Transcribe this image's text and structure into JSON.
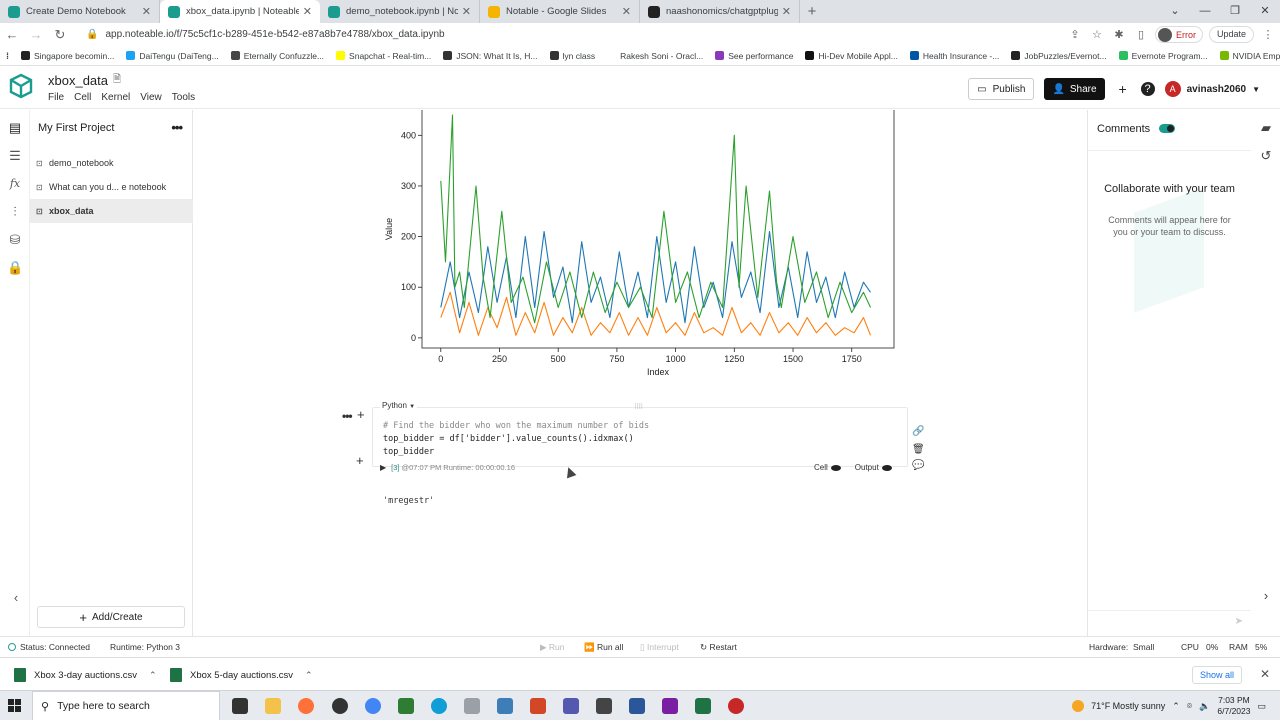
{
  "browser": {
    "tabs": [
      {
        "title": "Create Demo Notebook",
        "color": "#1a9d8f",
        "active": false
      },
      {
        "title": "xbox_data.ipynb | Noteable",
        "color": "#1a9d8f",
        "active": true
      },
      {
        "title": "demo_notebook.ipynb | Noteab...",
        "color": "#1a9d8f",
        "active": false
      },
      {
        "title": "Notable - Google Slides",
        "color": "#f4b400",
        "active": false
      },
      {
        "title": "naashonomics/chatgptplugins",
        "color": "#222222",
        "active": false
      }
    ],
    "url": "app.noteable.io/f/75c5cf1c-b289-451e-b542-e87a8b7e4788/xbox_data.ipynb",
    "error_label": "Error",
    "update_label": "Update",
    "bookmarks": [
      {
        "label": "Singapore becomin...",
        "color": "#222222"
      },
      {
        "label": "DaiTengu (DaiTeng...",
        "color": "#1da1f2"
      },
      {
        "label": "Eternally Confuzzle...",
        "color": "#464646"
      },
      {
        "label": "Snapchat - Real-tim...",
        "color": "#fffc00"
      },
      {
        "label": "JSON: What It Is, H...",
        "color": "#333333"
      },
      {
        "label": "lyn class",
        "color": "#333333"
      },
      {
        "label": "Rakesh Soni - Oracl...",
        "color": "#ffffff"
      },
      {
        "label": "See performance",
        "color": "#8a3ab9"
      },
      {
        "label": "Hi-Dev Mobile Appl...",
        "color": "#111111"
      },
      {
        "label": "Health Insurance -...",
        "color": "#0055a4"
      },
      {
        "label": "JobPuzzles/Evernot...",
        "color": "#222222"
      },
      {
        "label": "Evernote Program...",
        "color": "#2dbe60"
      },
      {
        "label": "NVIDIA Employment",
        "color": "#76b900"
      }
    ]
  },
  "app": {
    "notebook_title": "xbox_data",
    "menu": [
      "File",
      "Cell",
      "Kernel",
      "View",
      "Tools"
    ],
    "publish_label": "Publish",
    "share_label": "Share",
    "user_initial": "A",
    "username": "avinash2060"
  },
  "sidebar": {
    "project": "My First Project",
    "files": [
      {
        "label": "demo_notebook",
        "active": false
      },
      {
        "label": "What can you d... e notebook",
        "active": false
      },
      {
        "label": "xbox_data",
        "active": true
      }
    ],
    "add_create": "Add/Create"
  },
  "cell": {
    "language": "Python",
    "code_comment": "# Find the bidder who won the maximum number of bids",
    "code_line2": "top_bidder = df['bidder'].value_counts().idxmax()",
    "code_line3": "top_bidder",
    "exec_count": "[3]",
    "exec_info": "@07:07 PM Runtime: 00:00:00.16",
    "cell_label": "Cell",
    "output_label": "Output",
    "output": "'mregestr'"
  },
  "comments": {
    "title": "Comments",
    "heading": "Collaborate with your team",
    "body": "Comments will appear here for you or your team to discuss."
  },
  "status": {
    "status": "Status: Connected",
    "runtime": "Runtime:  Python 3",
    "run": "Run",
    "run_all": "Run all",
    "interrupt": "Interrupt",
    "restart": "Restart",
    "hardware": "Hardware:",
    "hardware_val": "Small",
    "cpu": "CPU",
    "cpu_val": "0%",
    "ram": "RAM",
    "ram_val": "5%"
  },
  "downloads": {
    "items": [
      "Xbox 3-day auctions.csv",
      "Xbox 5-day auctions.csv"
    ],
    "show_all": "Show all"
  },
  "taskbar": {
    "search_placeholder": "Type here to search",
    "weather": "71°F  Mostly sunny",
    "time": "7:03 PM",
    "date": "6/7/2023"
  },
  "chart_data": {
    "type": "line",
    "xlabel": "Index",
    "ylabel": "Value",
    "xticks": [
      0,
      250,
      500,
      750,
      1000,
      1250,
      1500,
      1750
    ],
    "yticks": [
      0,
      100,
      200,
      300,
      400
    ],
    "xlim": [
      -80,
      1930
    ],
    "ylim": [
      -20,
      450
    ],
    "series": [
      {
        "color": "#1f77b4",
        "x": [
          0,
          40,
          80,
          120,
          160,
          200,
          240,
          280,
          320,
          360,
          400,
          440,
          480,
          520,
          560,
          600,
          640,
          680,
          720,
          760,
          800,
          840,
          880,
          920,
          960,
          1000,
          1040,
          1080,
          1120,
          1160,
          1200,
          1240,
          1280,
          1320,
          1360,
          1400,
          1440,
          1480,
          1520,
          1560,
          1600,
          1640,
          1680,
          1720,
          1760,
          1800,
          1830
        ],
        "values": [
          60,
          150,
          40,
          130,
          50,
          180,
          70,
          160,
          40,
          200,
          60,
          210,
          80,
          140,
          30,
          190,
          70,
          120,
          40,
          170,
          60,
          130,
          40,
          200,
          70,
          150,
          30,
          180,
          60,
          110,
          40,
          190,
          80,
          130,
          50,
          210,
          60,
          140,
          40,
          170,
          70,
          120,
          40,
          130,
          60,
          110,
          90
        ]
      },
      {
        "color": "#ff7f0e",
        "x": [
          0,
          40,
          80,
          120,
          160,
          200,
          240,
          280,
          320,
          360,
          400,
          440,
          480,
          520,
          560,
          600,
          640,
          680,
          720,
          760,
          800,
          840,
          880,
          920,
          960,
          1000,
          1040,
          1080,
          1120,
          1160,
          1200,
          1240,
          1280,
          1320,
          1360,
          1400,
          1440,
          1480,
          1520,
          1560,
          1600,
          1640,
          1680,
          1720,
          1760,
          1800,
          1830
        ],
        "values": [
          40,
          90,
          10,
          70,
          5,
          60,
          20,
          80,
          5,
          50,
          10,
          70,
          5,
          40,
          10,
          60,
          5,
          30,
          10,
          50,
          5,
          40,
          5,
          60,
          10,
          30,
          5,
          50,
          10,
          20,
          5,
          60,
          10,
          30,
          5,
          50,
          10,
          30,
          5,
          40,
          10,
          30,
          5,
          20,
          10,
          40,
          5
        ]
      },
      {
        "color": "#2ca02c",
        "x": [
          0,
          20,
          50,
          60,
          80,
          100,
          150,
          180,
          210,
          260,
          300,
          350,
          400,
          450,
          500,
          550,
          600,
          650,
          700,
          750,
          800,
          850,
          900,
          950,
          1000,
          1050,
          1100,
          1150,
          1200,
          1250,
          1270,
          1300,
          1350,
          1400,
          1430,
          1450,
          1500,
          1550,
          1600,
          1650,
          1700,
          1750,
          1800,
          1830
        ],
        "values": [
          310,
          150,
          440,
          100,
          130,
          60,
          300,
          120,
          40,
          250,
          70,
          120,
          30,
          150,
          60,
          130,
          40,
          130,
          50,
          110,
          60,
          100,
          40,
          250,
          70,
          130,
          40,
          110,
          60,
          400,
          100,
          300,
          80,
          290,
          110,
          60,
          200,
          70,
          130,
          40,
          110,
          50,
          90,
          60
        ]
      }
    ]
  }
}
